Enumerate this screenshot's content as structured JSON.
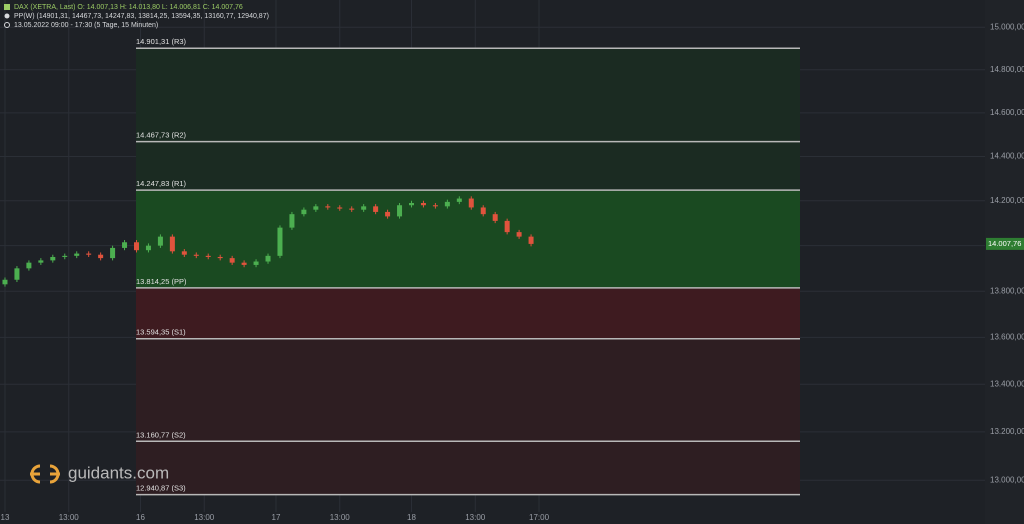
{
  "chart_data": {
    "type": "candlestick",
    "header_lines": [
      "DAX (XETRA, Last)   O: 14.007,13   H: 14.013,80   L: 14.006,81   C: 14.007,76",
      "PP(W)   (14901,31, 14467,73, 14247,83, 13814,25, 13594,35, 13160,77, 12940,87)",
      "13.05.2022 09:00 - 17:30   (5 Tage, 15 Minuten)"
    ],
    "watermark": "guidants.com",
    "log_scale": true,
    "grid": true,
    "colors": {
      "up": "#4caf50",
      "down": "#e0533d"
    },
    "x": [
      0,
      3,
      6,
      9,
      12,
      15,
      18,
      21,
      24,
      27,
      30,
      33,
      36,
      39,
      42,
      45,
      48,
      51,
      54,
      57,
      60,
      63,
      66,
      69,
      72,
      75,
      78,
      81,
      84,
      87,
      90,
      93,
      96,
      99,
      102,
      105,
      108,
      111,
      114,
      117,
      120,
      123,
      126,
      129,
      132
    ],
    "open": [
      13830,
      13850,
      13900,
      13925,
      13935,
      13950,
      13955,
      13965,
      13960,
      13945,
      13990,
      14015,
      13980,
      14000,
      14040,
      13975,
      13960,
      13955,
      13950,
      13945,
      13925,
      13915,
      13930,
      13955,
      14080,
      14140,
      14160,
      14175,
      14170,
      14165,
      14160,
      14175,
      14150,
      14130,
      14180,
      14190,
      14180,
      14175,
      14195,
      14210,
      14170,
      14140,
      14110,
      14060,
      14040
    ],
    "high": [
      13860,
      13910,
      13935,
      13945,
      13960,
      13965,
      13975,
      13975,
      13970,
      14000,
      14025,
      14025,
      14010,
      14050,
      14050,
      13985,
      13970,
      13965,
      13960,
      13955,
      13935,
      13940,
      13965,
      14090,
      14150,
      14170,
      14185,
      14185,
      14180,
      14175,
      14185,
      14185,
      14160,
      14190,
      14200,
      14200,
      14190,
      14205,
      14220,
      14220,
      14180,
      14150,
      14120,
      14070,
      14050
    ],
    "low": [
      13820,
      13840,
      13890,
      13915,
      13925,
      13940,
      13945,
      13950,
      13935,
      13935,
      13980,
      13970,
      13970,
      13990,
      13965,
      13950,
      13945,
      13940,
      13935,
      13915,
      13905,
      13905,
      13920,
      13945,
      14070,
      14130,
      14150,
      14160,
      14155,
      14150,
      14150,
      14140,
      14120,
      14120,
      14170,
      14170,
      14165,
      14165,
      14185,
      14160,
      14130,
      14100,
      14050,
      14030,
      13997
    ],
    "close": [
      13850,
      13900,
      13925,
      13935,
      13950,
      13955,
      13965,
      13960,
      13945,
      13990,
      14015,
      13980,
      14000,
      14040,
      13975,
      13960,
      13955,
      13950,
      13945,
      13925,
      13915,
      13930,
      13955,
      14080,
      14140,
      14160,
      14175,
      14170,
      14165,
      14160,
      14175,
      14150,
      14130,
      14180,
      14190,
      14180,
      14175,
      14195,
      14210,
      14170,
      14140,
      14110,
      14060,
      14040,
      14007.76
    ],
    "xlim": [
      -1.25,
      245.9
    ],
    "xticks": [
      {
        "value": 0,
        "label": "13"
      },
      {
        "value": 16,
        "label": "13:00"
      },
      {
        "value": 34,
        "label": "16"
      },
      {
        "value": 50,
        "label": "13:00"
      },
      {
        "value": 68,
        "label": "17"
      },
      {
        "value": 84,
        "label": "13:00"
      },
      {
        "value": 102,
        "label": "18"
      },
      {
        "value": 118,
        "label": "13:00"
      },
      {
        "value": 134,
        "label": "17:00"
      }
    ],
    "ylim": [
      12870,
      15130
    ],
    "yticks": [
      {
        "value": 13000,
        "label": "13.000,00"
      },
      {
        "value": 13200,
        "label": "13.200,00"
      },
      {
        "value": 13400,
        "label": "13.400,00"
      },
      {
        "value": 13600,
        "label": "13.600,00"
      },
      {
        "value": 13800,
        "label": "13.800,00"
      },
      {
        "value": 14000,
        "label": "14.000,00"
      },
      {
        "value": 14200,
        "label": "14.200,00"
      },
      {
        "value": 14400,
        "label": "14.400,00"
      },
      {
        "value": 14600,
        "label": "14.600,00"
      },
      {
        "value": 14800,
        "label": "14.800,00"
      },
      {
        "value": 15000,
        "label": "15.000,00"
      }
    ],
    "levels": [
      {
        "value": 14901.31,
        "label": "14.901,31 (R3)"
      },
      {
        "value": 14467.73,
        "label": "14.467,73 (R2)"
      },
      {
        "value": 14247.83,
        "label": "14.247,83 (R1)"
      },
      {
        "value": 13814.25,
        "label": "13.814,25 (PP)"
      },
      {
        "value": 13594.35,
        "label": "13.594,35 (S1)"
      },
      {
        "value": 13160.77,
        "label": "13.160,77 (S2)"
      },
      {
        "value": 12940.87,
        "label": "12.940,87 (S3)"
      }
    ],
    "last_price": {
      "value": 14007.76,
      "label": "14.007,76"
    }
  }
}
